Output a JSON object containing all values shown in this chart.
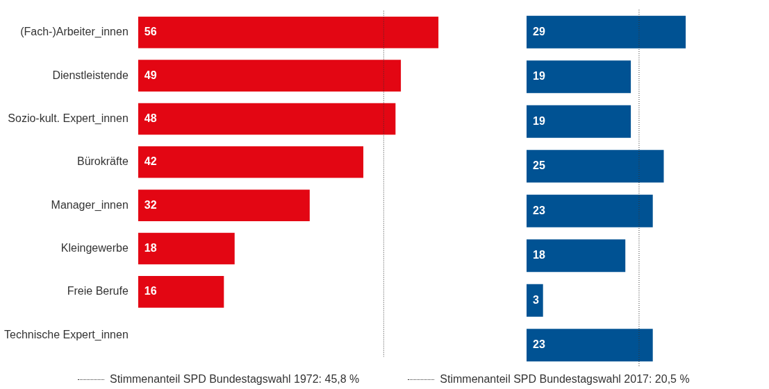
{
  "chart_data": [
    {
      "type": "bar",
      "orientation": "horizontal",
      "categories": [
        "(Fach-)Arbeiter_innen",
        "Dienstleistende",
        "Sozio-kult. Expert_innen",
        "Bürokräfte",
        "Manager_innen",
        "Kleingewerbe",
        "Freie Berufe",
        "Technische Expert_innen"
      ],
      "values": [
        56,
        49,
        48,
        42,
        32,
        18,
        16,
        null
      ],
      "color": "#e30613",
      "tick_labels": "y",
      "grid": false,
      "legend": "bottom",
      "data_labels": true,
      "ref_lines": [
        {
          "axis": "x",
          "value": 45.8,
          "label": "Stimmenanteil SPD Bundestagswahl 1972: 45,8 %",
          "color": "#333333",
          "line_style": "dotted"
        }
      ]
    },
    {
      "type": "bar",
      "orientation": "horizontal",
      "categories": [
        null,
        null,
        null,
        null,
        null,
        null,
        null,
        null
      ],
      "values": [
        29,
        19,
        19,
        25,
        23,
        18,
        3,
        23
      ],
      "color": "#005293",
      "tick_labels": false,
      "grid": false,
      "legend": "bottom",
      "data_labels": true,
      "ref_lines": [
        {
          "axis": "x",
          "value": 20.5,
          "label": "Stimmenanteil SPD Bundestagswahl 2017: 20,5 %",
          "color": "#333333",
          "line_style": "dotted"
        }
      ]
    }
  ]
}
